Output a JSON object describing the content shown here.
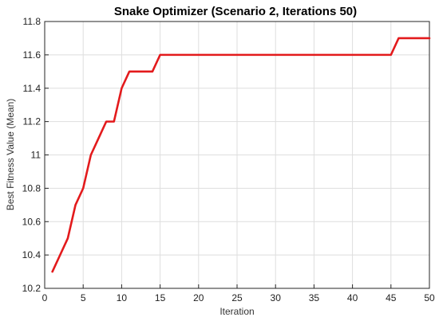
{
  "chart_data": {
    "type": "line",
    "title": "Snake Optimizer (Scenario 2, Iterations 50)",
    "xlabel": "Iteration",
    "ylabel": "Best Fitness Value (Mean)",
    "xlim": [
      0,
      50
    ],
    "ylim": [
      10.2,
      11.8
    ],
    "xticks": [
      0,
      5,
      10,
      15,
      20,
      25,
      30,
      35,
      40,
      45,
      50
    ],
    "yticks": [
      10.2,
      10.4,
      10.6,
      10.8,
      11,
      11.2,
      11.4,
      11.6,
      11.8
    ],
    "ytick_labels": [
      "10.2",
      "10.4",
      "10.6",
      "10.8",
      "11",
      "11.2",
      "11.4",
      "11.6",
      "11.8"
    ],
    "grid": true,
    "series": [
      {
        "color": "#e31a1c",
        "x": [
          1,
          2,
          3,
          4,
          5,
          6,
          7,
          8,
          9,
          10,
          11,
          12,
          13,
          14,
          15,
          16,
          17,
          18,
          19,
          20,
          21,
          22,
          23,
          24,
          25,
          26,
          27,
          28,
          29,
          30,
          31,
          32,
          33,
          34,
          35,
          36,
          37,
          38,
          39,
          40,
          41,
          42,
          43,
          44,
          45,
          46,
          47,
          48,
          49,
          50
        ],
        "y": [
          10.3,
          10.4,
          10.5,
          10.7,
          10.8,
          11.0,
          11.1,
          11.2,
          11.2,
          11.4,
          11.5,
          11.5,
          11.5,
          11.5,
          11.6,
          11.6,
          11.6,
          11.6,
          11.6,
          11.6,
          11.6,
          11.6,
          11.6,
          11.6,
          11.6,
          11.6,
          11.6,
          11.6,
          11.6,
          11.6,
          11.6,
          11.6,
          11.6,
          11.6,
          11.6,
          11.6,
          11.6,
          11.6,
          11.6,
          11.6,
          11.6,
          11.6,
          11.6,
          11.6,
          11.6,
          11.7,
          11.7,
          11.7,
          11.7,
          11.7
        ]
      }
    ]
  }
}
